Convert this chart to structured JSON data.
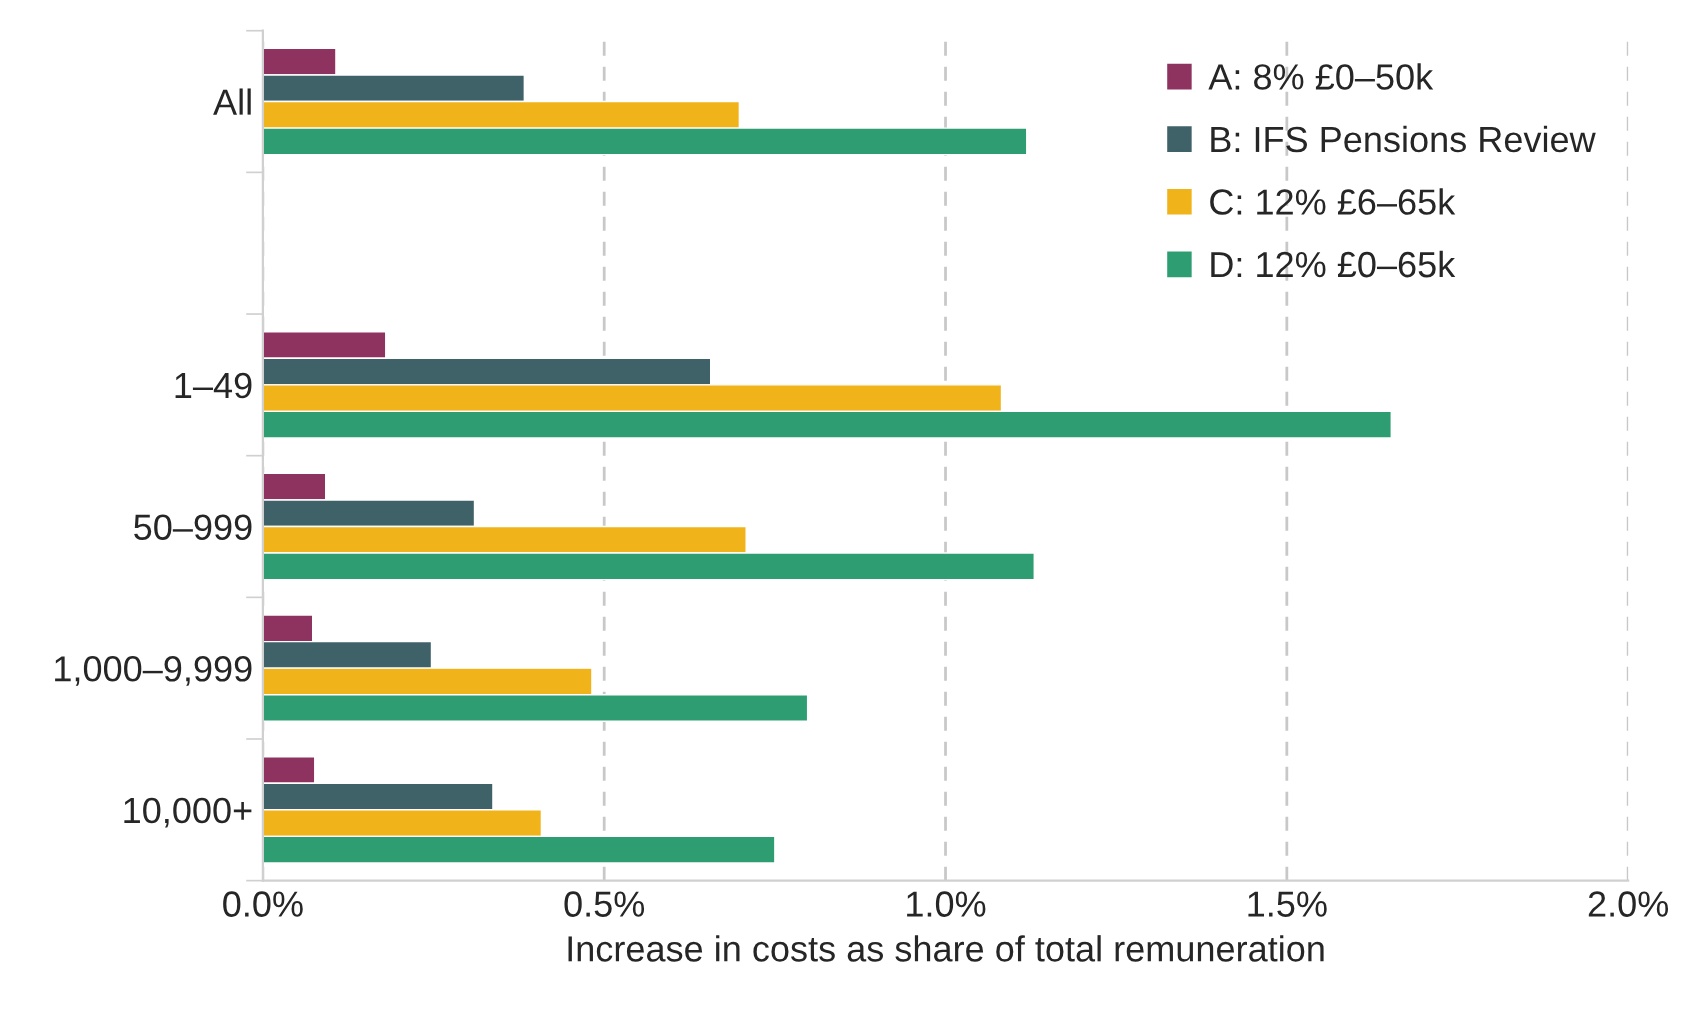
{
  "chart_data": {
    "type": "bar",
    "orientation": "horizontal",
    "xlabel": "Increase in costs as share of total remuneration",
    "categories": [
      "All",
      null,
      "1–49",
      "50–999",
      "1,000–9,999",
      "10,000+"
    ],
    "series": [
      {
        "name": "A: 8% £0–50k",
        "color": "#8e3360",
        "values": [
          0.107,
          null,
          0.18,
          0.092,
          0.073,
          0.076
        ]
      },
      {
        "name": "B: IFS Pensions Review",
        "color": "#3f6268",
        "values": [
          0.383,
          null,
          0.656,
          0.31,
          0.247,
          0.337
        ]
      },
      {
        "name": "C: 12% £6–65k",
        "color": "#f0b31a",
        "values": [
          0.698,
          null,
          1.082,
          0.708,
          0.482,
          0.408
        ]
      },
      {
        "name": "D: 12% £0–65k",
        "color": "#2e9e72",
        "values": [
          1.119,
          null,
          1.653,
          1.13,
          0.798,
          0.75
        ]
      }
    ],
    "xlim": [
      0,
      2.0
    ],
    "xticks": [
      {
        "value": 0,
        "label": "0.0%"
      },
      {
        "value": 0.5,
        "label": "0.5%"
      },
      {
        "value": 1.0,
        "label": "1.0%"
      },
      {
        "value": 1.5,
        "label": "1.5%"
      },
      {
        "value": 2.0,
        "label": "2.0%"
      }
    ],
    "grid": "x",
    "legend": "top right"
  }
}
